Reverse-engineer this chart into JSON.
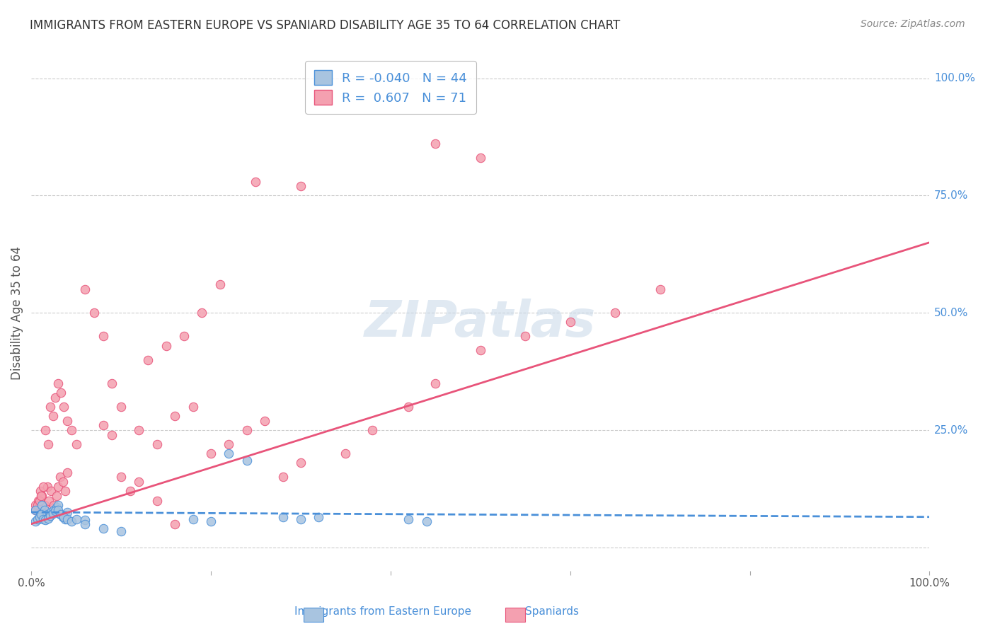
{
  "title": "IMMIGRANTS FROM EASTERN EUROPE VS SPANIARD DISABILITY AGE 35 TO 64 CORRELATION CHART",
  "source": "Source: ZipAtlas.com",
  "ylabel": "Disability Age 35 to 64",
  "xlim": [
    0,
    1.0
  ],
  "ylim": [
    -0.05,
    1.05
  ],
  "color_blue": "#a8c4e0",
  "color_pink": "#f4a0b0",
  "line_blue": "#4a90d9",
  "line_pink": "#e8547a",
  "title_color": "#333333",
  "source_color": "#888888",
  "axis_label_color": "#555555",
  "right_tick_color": "#4a90d9",
  "grid_color": "#cccccc",
  "watermark_color": "#c8d8e8",
  "blue_scatter_x": [
    0.005,
    0.008,
    0.01,
    0.012,
    0.015,
    0.018,
    0.02,
    0.022,
    0.025,
    0.028,
    0.03,
    0.032,
    0.035,
    0.038,
    0.04,
    0.005,
    0.007,
    0.009,
    0.011,
    0.013,
    0.016,
    0.019,
    0.021,
    0.024,
    0.027,
    0.03,
    0.033,
    0.036,
    0.04,
    0.045,
    0.05,
    0.06,
    0.22,
    0.24,
    0.28,
    0.3,
    0.32,
    0.42,
    0.44,
    0.06,
    0.08,
    0.1,
    0.18,
    0.2
  ],
  "blue_scatter_y": [
    0.08,
    0.06,
    0.07,
    0.09,
    0.08,
    0.07,
    0.065,
    0.075,
    0.08,
    0.085,
    0.09,
    0.07,
    0.065,
    0.06,
    0.075,
    0.055,
    0.06,
    0.065,
    0.07,
    0.06,
    0.058,
    0.062,
    0.068,
    0.072,
    0.078,
    0.08,
    0.07,
    0.065,
    0.06,
    0.055,
    0.06,
    0.058,
    0.2,
    0.185,
    0.065,
    0.06,
    0.065,
    0.06,
    0.055,
    0.05,
    0.04,
    0.035,
    0.06,
    0.055
  ],
  "pink_scatter_x": [
    0.005,
    0.008,
    0.01,
    0.012,
    0.015,
    0.018,
    0.02,
    0.022,
    0.025,
    0.028,
    0.03,
    0.032,
    0.035,
    0.038,
    0.04,
    0.005,
    0.007,
    0.009,
    0.011,
    0.013,
    0.016,
    0.019,
    0.021,
    0.024,
    0.027,
    0.03,
    0.033,
    0.036,
    0.04,
    0.045,
    0.05,
    0.06,
    0.07,
    0.08,
    0.09,
    0.1,
    0.12,
    0.14,
    0.16,
    0.18,
    0.2,
    0.22,
    0.24,
    0.26,
    0.28,
    0.3,
    0.35,
    0.38,
    0.42,
    0.45,
    0.5,
    0.55,
    0.6,
    0.65,
    0.7,
    0.13,
    0.15,
    0.17,
    0.19,
    0.21,
    0.08,
    0.09,
    0.1,
    0.11,
    0.12,
    0.14,
    0.16,
    0.25,
    0.3,
    0.45,
    0.5
  ],
  "pink_scatter_y": [
    0.09,
    0.1,
    0.12,
    0.11,
    0.09,
    0.13,
    0.1,
    0.12,
    0.09,
    0.11,
    0.13,
    0.15,
    0.14,
    0.12,
    0.16,
    0.08,
    0.09,
    0.1,
    0.11,
    0.13,
    0.25,
    0.22,
    0.3,
    0.28,
    0.32,
    0.35,
    0.33,
    0.3,
    0.27,
    0.25,
    0.22,
    0.55,
    0.5,
    0.45,
    0.35,
    0.3,
    0.25,
    0.22,
    0.28,
    0.3,
    0.2,
    0.22,
    0.25,
    0.27,
    0.15,
    0.18,
    0.2,
    0.25,
    0.3,
    0.35,
    0.42,
    0.45,
    0.48,
    0.5,
    0.55,
    0.4,
    0.43,
    0.45,
    0.5,
    0.56,
    0.26,
    0.24,
    0.15,
    0.12,
    0.14,
    0.1,
    0.05,
    0.78,
    0.77,
    0.86,
    0.83
  ],
  "blue_line_x": [
    0.0,
    1.0
  ],
  "blue_line_y": [
    0.075,
    0.065
  ],
  "pink_line_x": [
    0.0,
    1.0
  ],
  "pink_line_y": [
    0.05,
    0.65
  ]
}
